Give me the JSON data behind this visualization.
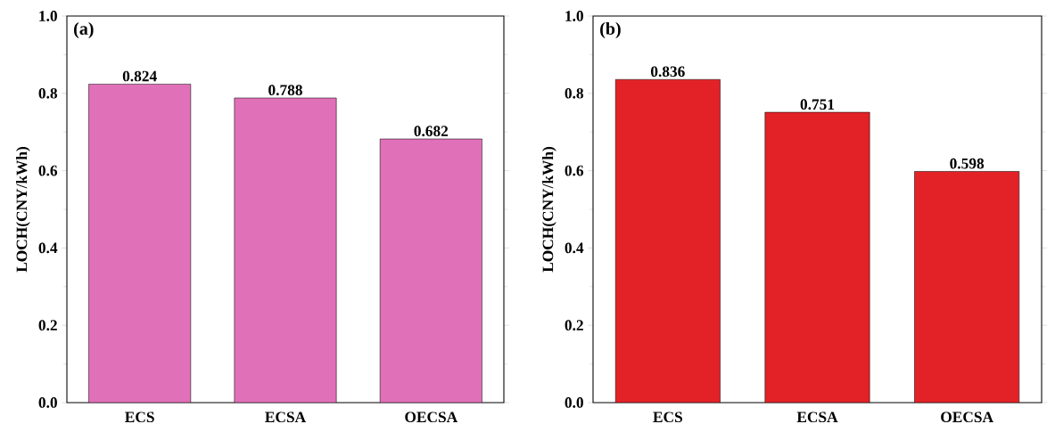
{
  "chart_data": [
    {
      "type": "bar",
      "annotations": [
        "(a)"
      ],
      "ylabel": "LOCH(CNY/kWh)",
      "categories": [
        "ECS",
        "ECSA",
        "OECSA"
      ],
      "values": [
        0.824,
        0.788,
        0.682
      ],
      "color": "#e070b8",
      "data_labels": true,
      "ylim": [
        0,
        1
      ],
      "yticks": [
        {
          "value": 0,
          "label": "0.0"
        },
        {
          "value": 0.2,
          "label": "0.2"
        },
        {
          "value": 0.4,
          "label": "0.4"
        },
        {
          "value": 0.6,
          "label": "0.6"
        },
        {
          "value": 0.8,
          "label": "0.8"
        },
        {
          "value": 1,
          "label": "1.0"
        }
      ]
    },
    {
      "type": "bar",
      "annotations": [
        "(b)"
      ],
      "ylabel": "LOCH(CNY/kWh)",
      "categories": [
        "ECS",
        "ECSA",
        "OECSA"
      ],
      "values": [
        0.836,
        0.751,
        0.598
      ],
      "color": "#e32228",
      "data_labels": true,
      "ylim": [
        0,
        1
      ],
      "yticks": [
        {
          "value": 0,
          "label": "0.0"
        },
        {
          "value": 0.2,
          "label": "0.2"
        },
        {
          "value": 0.4,
          "label": "0.4"
        },
        {
          "value": 0.6,
          "label": "0.6"
        },
        {
          "value": 0.8,
          "label": "0.8"
        },
        {
          "value": 1,
          "label": "1.0"
        }
      ]
    }
  ]
}
